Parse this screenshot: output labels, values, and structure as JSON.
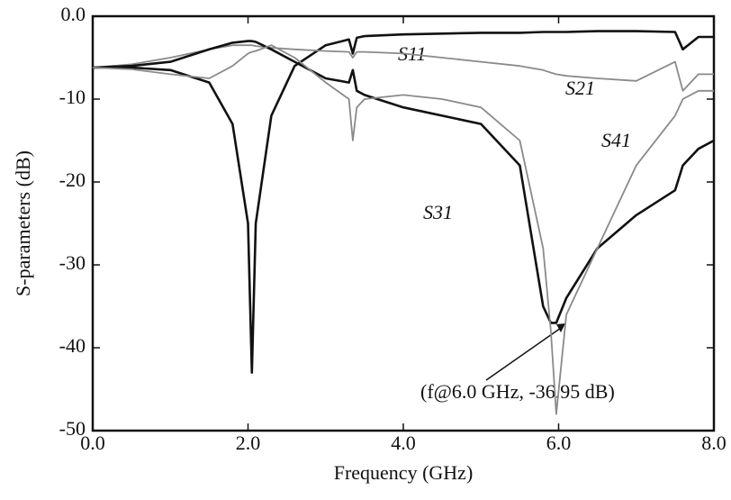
{
  "chart_data": {
    "type": "line",
    "xlabel": "Frequency (GHz)",
    "ylabel": "S-parameters (dB)",
    "x": [
      0,
      0.5,
      1,
      1.5,
      1.8,
      2,
      2.05,
      2.1,
      2.3,
      2.6,
      3,
      3.3,
      3.35,
      3.4,
      3.5,
      4,
      4.5,
      5,
      5.5,
      5.8,
      5.9,
      5.97,
      6.1,
      6.5,
      7,
      7.5,
      7.6,
      7.8,
      8
    ],
    "series": [
      {
        "name": "S11",
        "color": "#111111",
        "linewidth": 2.6,
        "values": [
          -6.2,
          -6.2,
          -6.5,
          -8,
          -13,
          -25,
          -43,
          -25,
          -12,
          -6,
          -3.5,
          -2.8,
          -4.5,
          -2.6,
          -2.4,
          -2.2,
          -2.1,
          -2,
          -2,
          -1.9,
          -1.9,
          -1.9,
          -1.9,
          -1.8,
          -1.8,
          -1.9,
          -4,
          -2.5,
          -2.5
        ]
      },
      {
        "name": "S21",
        "color": "#8a8a8a",
        "linewidth": 1.8,
        "values": [
          -6.2,
          -5.8,
          -5,
          -4,
          -3.5,
          -3.5,
          -3.5,
          -3.6,
          -3.8,
          -4,
          -4.2,
          -4.3,
          -5,
          -4.3,
          -4.3,
          -4.5,
          -5,
          -5.5,
          -6,
          -6.5,
          -6.8,
          -7,
          -7.2,
          -7.5,
          -7.8,
          -5.5,
          -9,
          -7,
          -7
        ]
      },
      {
        "name": "S31",
        "color": "#111111",
        "linewidth": 2.6,
        "values": [
          -6.2,
          -6,
          -5.5,
          -4,
          -3.2,
          -3,
          -3,
          -3.1,
          -4,
          -5.5,
          -7.5,
          -8,
          -6.5,
          -9,
          -9.5,
          -11,
          -12,
          -13,
          -18,
          -35,
          -37,
          -37,
          -34,
          -28,
          -24,
          -21,
          -18,
          -16,
          -15
        ]
      },
      {
        "name": "S41",
        "color": "#8a8a8a",
        "linewidth": 1.8,
        "values": [
          -6.2,
          -6.4,
          -7,
          -7.5,
          -6,
          -4.5,
          -4.3,
          -4.2,
          -3.5,
          -5,
          -8,
          -10,
          -15,
          -11,
          -10,
          -9.5,
          -10,
          -11,
          -15,
          -28,
          -38,
          -48,
          -36,
          -28,
          -18,
          -12,
          -10,
          -9,
          -9
        ]
      }
    ],
    "annotation": "(f@6.0 GHz, -36.95 dB)",
    "xlim": [
      0,
      8
    ],
    "ylim": [
      -50,
      0
    ],
    "xticks": [
      {
        "value": 0,
        "label": "0.0"
      },
      {
        "value": 2,
        "label": "2.0"
      },
      {
        "value": 4,
        "label": "4.0"
      },
      {
        "value": 6,
        "label": "6.0"
      },
      {
        "value": 8,
        "label": "8.0"
      }
    ],
    "yticks": [
      {
        "value": 0,
        "label": "0.0"
      },
      -10,
      -20,
      -30,
      -40,
      -50
    ]
  }
}
